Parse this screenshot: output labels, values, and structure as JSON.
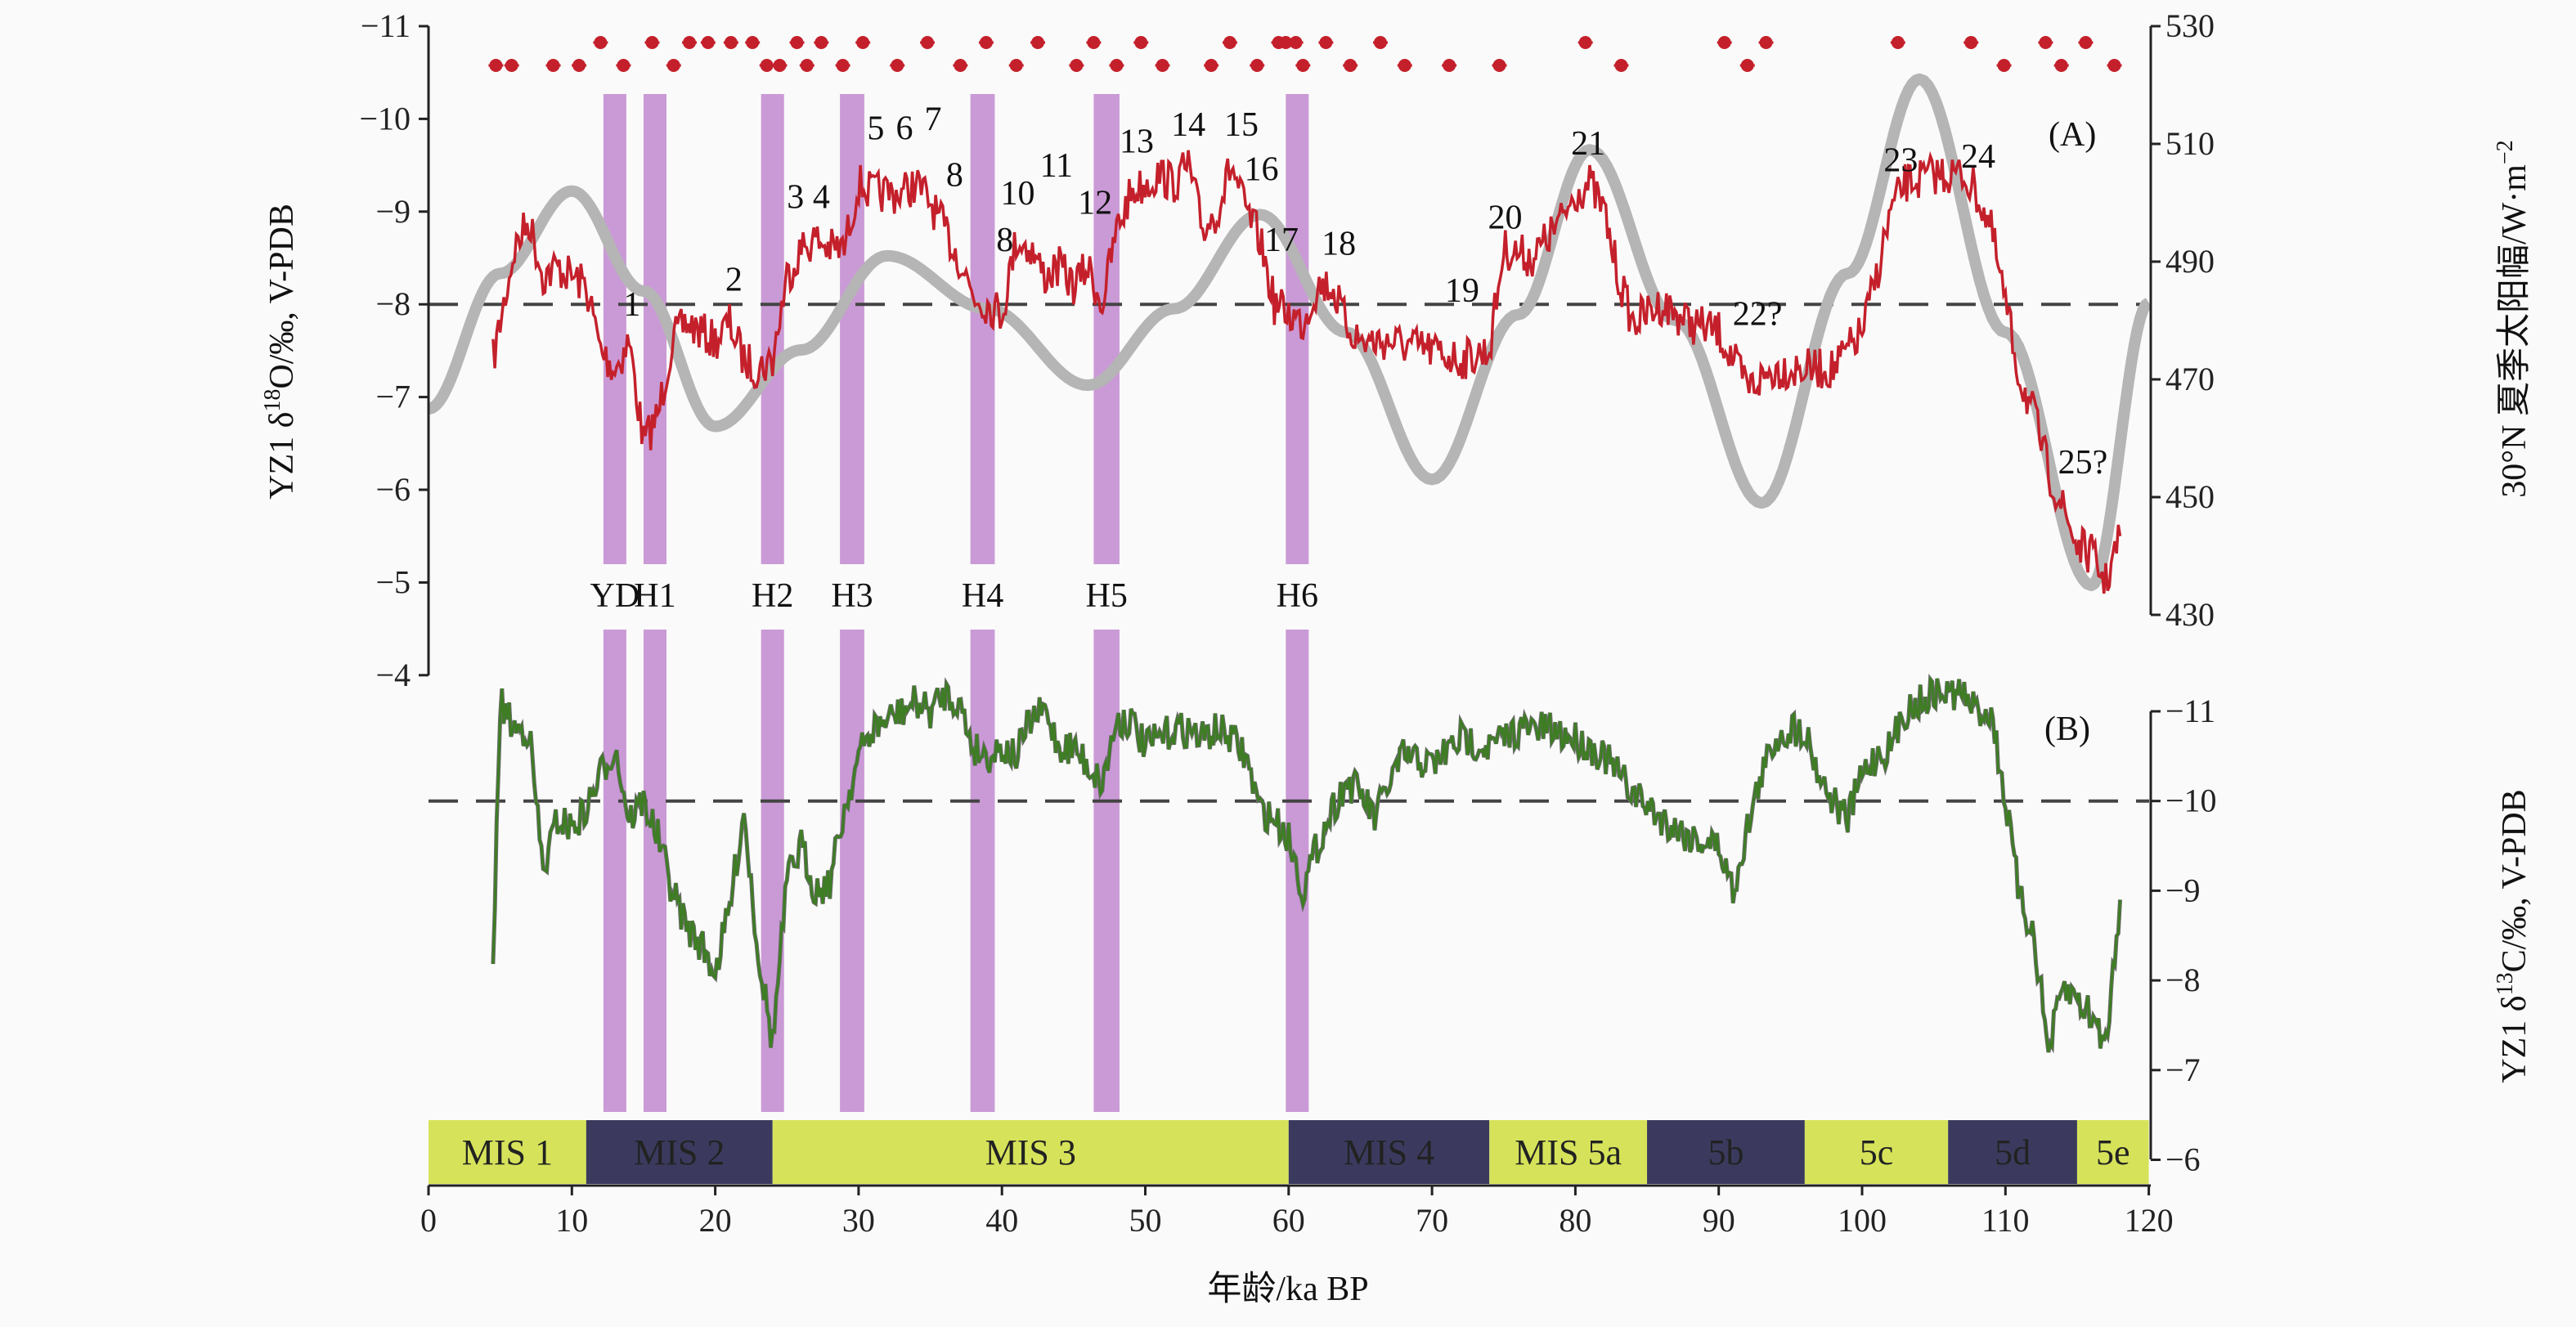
{
  "chart_data": {
    "type": "line",
    "panels": [
      "(A)",
      "(B)"
    ],
    "xlabel": "年龄/ka BP",
    "xlim": [
      0,
      120
    ],
    "xticks": [
      0,
      10,
      20,
      30,
      40,
      50,
      60,
      70,
      80,
      90,
      100,
      110,
      120
    ],
    "ylabel_left_A": {
      "pre": "YZ1 δ",
      "sup": "18",
      "post": "O/‰, V-PDB"
    },
    "ylim_left_A": [
      -11,
      -4
    ],
    "yticks_left_A": [
      "−11",
      "−10",
      "−9",
      "−8",
      "−7",
      "−6",
      "−5",
      "−4"
    ],
    "ylabel_right_A": {
      "pre": "30°N 夏季太阳幅/W·m",
      "sup": "−2"
    },
    "ylim_right_A": [
      430,
      530
    ],
    "yticks_right_A": [
      "530",
      "510",
      "490",
      "470",
      "450",
      "430"
    ],
    "ylabel_right_B": {
      "pre": "YZ1 δ",
      "sup": "13",
      "post": "C/‰, V-PDB"
    },
    "ylim_right_B": [
      -11,
      -6
    ],
    "yticks_right_B": [
      "−11",
      "−10",
      "−9",
      "−8",
      "−7",
      "−6"
    ],
    "reference_lines": {
      "A_d18O": -8,
      "B_d13C": -10
    },
    "series": [
      {
        "name": "YZ1 d18O",
        "color": "#c4202b",
        "axis": "left_A",
        "points": [
          [
            4.5,
            -7.4
          ],
          [
            5,
            -7.8
          ],
          [
            6,
            -8.6
          ],
          [
            7,
            -8.9
          ],
          [
            8,
            -8.3
          ],
          [
            9,
            -8.4
          ],
          [
            10,
            -8.3
          ],
          [
            11,
            -8.2
          ],
          [
            12,
            -7.5
          ],
          [
            13,
            -7.3
          ],
          [
            14,
            -7.6
          ],
          [
            15,
            -6.5
          ],
          [
            16,
            -6.8
          ],
          [
            17,
            -7.6
          ],
          [
            18,
            -7.8
          ],
          [
            19,
            -7.7
          ],
          [
            20,
            -7.6
          ],
          [
            21,
            -7.8
          ],
          [
            22,
            -7.4
          ],
          [
            23,
            -7.3
          ],
          [
            24,
            -7.4
          ],
          [
            25,
            -8.3
          ],
          [
            26,
            -8.6
          ],
          [
            27,
            -8.7
          ],
          [
            28,
            -8.6
          ],
          [
            29,
            -8.6
          ],
          [
            30,
            -9.3
          ],
          [
            31,
            -9.2
          ],
          [
            32,
            -9.2
          ],
          [
            33,
            -9.2
          ],
          [
            34,
            -9.3
          ],
          [
            35,
            -9.1
          ],
          [
            36,
            -8.8
          ],
          [
            37,
            -8.5
          ],
          [
            38,
            -8.1
          ],
          [
            39,
            -8.0
          ],
          [
            40,
            -7.9
          ],
          [
            41,
            -8.7
          ],
          [
            42,
            -8.6
          ],
          [
            43,
            -8.3
          ],
          [
            44,
            -8.4
          ],
          [
            45,
            -8.2
          ],
          [
            46,
            -8.4
          ],
          [
            47,
            -8.0
          ],
          [
            48,
            -8.8
          ],
          [
            49,
            -9.2
          ],
          [
            50,
            -9.3
          ],
          [
            51,
            -9.4
          ],
          [
            52,
            -9.3
          ],
          [
            53,
            -9.5
          ],
          [
            54,
            -8.8
          ],
          [
            55,
            -9.0
          ],
          [
            56,
            -9.5
          ],
          [
            57,
            -9.0
          ],
          [
            58,
            -8.7
          ],
          [
            59,
            -8.0
          ],
          [
            60,
            -7.9
          ],
          [
            61,
            -7.8
          ],
          [
            62,
            -8.2
          ],
          [
            63,
            -8.2
          ],
          [
            64,
            -7.8
          ],
          [
            65,
            -7.6
          ],
          [
            67,
            -7.6
          ],
          [
            70,
            -7.5
          ],
          [
            72,
            -7.4
          ],
          [
            74,
            -7.5
          ],
          [
            75,
            -8.6
          ],
          [
            77,
            -8.5
          ],
          [
            79,
            -8.9
          ],
          [
            80,
            -9.2
          ],
          [
            81,
            -9.3
          ],
          [
            82,
            -9.0
          ],
          [
            83,
            -8.3
          ],
          [
            84,
            -7.8
          ],
          [
            86,
            -8.0
          ],
          [
            88,
            -7.8
          ],
          [
            90,
            -7.7
          ],
          [
            92,
            -7.1
          ],
          [
            94,
            -7.3
          ],
          [
            96,
            -7.3
          ],
          [
            98,
            -7.3
          ],
          [
            100,
            -7.7
          ],
          [
            101,
            -8.3
          ],
          [
            102,
            -9.0
          ],
          [
            103,
            -9.3
          ],
          [
            105,
            -9.4
          ],
          [
            107,
            -9.4
          ],
          [
            108,
            -9.2
          ],
          [
            109,
            -8.8
          ],
          [
            110,
            -8.0
          ],
          [
            111,
            -7.2
          ],
          [
            112,
            -6.8
          ],
          [
            113,
            -6.2
          ],
          [
            114,
            -5.8
          ],
          [
            115,
            -5.4
          ],
          [
            116,
            -5.3
          ],
          [
            117,
            -5.0
          ],
          [
            118,
            -5.5
          ]
        ]
      },
      {
        "name": "30N summer insolation",
        "color": "#b5b5b5",
        "axis": "right_A",
        "points": [
          [
            0,
            465
          ],
          [
            5,
            488
          ],
          [
            10,
            502
          ],
          [
            15,
            485
          ],
          [
            20,
            462
          ],
          [
            26,
            475
          ],
          [
            32,
            491
          ],
          [
            39,
            482
          ],
          [
            46,
            469
          ],
          [
            52,
            482
          ],
          [
            58,
            498
          ],
          [
            64,
            478
          ],
          [
            70,
            453
          ],
          [
            76,
            481
          ],
          [
            81,
            509
          ],
          [
            87,
            480
          ],
          [
            93,
            449
          ],
          [
            99,
            488
          ],
          [
            104,
            521
          ],
          [
            110,
            478
          ],
          [
            116,
            435
          ],
          [
            120,
            483
          ]
        ]
      },
      {
        "name": "YZ1 d13C",
        "color": "#3e7d24",
        "axis": "right_B",
        "points": [
          [
            4.5,
            -8.1
          ],
          [
            5,
            -11.1
          ],
          [
            6,
            -10.8
          ],
          [
            7,
            -10.8
          ],
          [
            8,
            -9.2
          ],
          [
            9,
            -9.8
          ],
          [
            10,
            -9.7
          ],
          [
            11,
            -9.9
          ],
          [
            12,
            -10.3
          ],
          [
            13,
            -10.6
          ],
          [
            14,
            -9.8
          ],
          [
            15,
            -10.0
          ],
          [
            16,
            -9.6
          ],
          [
            17,
            -9.0
          ],
          [
            18,
            -8.6
          ],
          [
            19,
            -8.4
          ],
          [
            20,
            -8.1
          ],
          [
            21,
            -8.8
          ],
          [
            22,
            -9.9
          ],
          [
            23,
            -8.3
          ],
          [
            24,
            -7.3
          ],
          [
            25,
            -9.1
          ],
          [
            26,
            -9.5
          ],
          [
            27,
            -9.0
          ],
          [
            28,
            -9.1
          ],
          [
            29,
            -9.9
          ],
          [
            30,
            -10.5
          ],
          [
            31,
            -10.8
          ],
          [
            32,
            -10.9
          ],
          [
            33,
            -11.0
          ],
          [
            34,
            -11.1
          ],
          [
            35,
            -11.0
          ],
          [
            36,
            -11.2
          ],
          [
            37,
            -11.1
          ],
          [
            38,
            -10.6
          ],
          [
            39,
            -10.5
          ],
          [
            40,
            -10.6
          ],
          [
            41,
            -10.5
          ],
          [
            42,
            -10.9
          ],
          [
            43,
            -11.0
          ],
          [
            44,
            -10.6
          ],
          [
            45,
            -10.6
          ],
          [
            46,
            -10.4
          ],
          [
            47,
            -10.2
          ],
          [
            48,
            -10.9
          ],
          [
            49,
            -10.9
          ],
          [
            50,
            -10.6
          ],
          [
            51,
            -10.7
          ],
          [
            52,
            -10.8
          ],
          [
            53,
            -10.8
          ],
          [
            54,
            -10.7
          ],
          [
            55,
            -10.8
          ],
          [
            56,
            -10.7
          ],
          [
            57,
            -10.5
          ],
          [
            58,
            -9.9
          ],
          [
            59,
            -9.8
          ],
          [
            60,
            -9.6
          ],
          [
            61,
            -9.0
          ],
          [
            62,
            -9.5
          ],
          [
            63,
            -9.9
          ],
          [
            64,
            -10.2
          ],
          [
            65,
            -10.1
          ],
          [
            66,
            -9.8
          ],
          [
            67,
            -10.2
          ],
          [
            68,
            -10.5
          ],
          [
            70,
            -10.4
          ],
          [
            72,
            -10.7
          ],
          [
            74,
            -10.6
          ],
          [
            76,
            -10.8
          ],
          [
            78,
            -10.8
          ],
          [
            80,
            -10.7
          ],
          [
            82,
            -10.5
          ],
          [
            84,
            -10.1
          ],
          [
            86,
            -9.8
          ],
          [
            88,
            -9.6
          ],
          [
            90,
            -9.5
          ],
          [
            91,
            -9.0
          ],
          [
            92,
            -9.7
          ],
          [
            93,
            -10.3
          ],
          [
            94,
            -10.7
          ],
          [
            95,
            -10.8
          ],
          [
            96,
            -10.8
          ],
          [
            97,
            -10.3
          ],
          [
            98,
            -10.0
          ],
          [
            99,
            -9.8
          ],
          [
            100,
            -10.3
          ],
          [
            101,
            -10.5
          ],
          [
            102,
            -10.6
          ],
          [
            103,
            -11.0
          ],
          [
            105,
            -11.2
          ],
          [
            107,
            -11.2
          ],
          [
            108,
            -11.0
          ],
          [
            109,
            -11.0
          ],
          [
            110,
            -10.0
          ],
          [
            111,
            -8.9
          ],
          [
            112,
            -8.5
          ],
          [
            113,
            -7.2
          ],
          [
            114,
            -7.9
          ],
          [
            115,
            -7.8
          ],
          [
            116,
            -7.6
          ],
          [
            117,
            -7.3
          ],
          [
            118,
            -8.9
          ]
        ]
      }
    ],
    "u_th_dates": {
      "color": "#c4202b",
      "upper_row": [
        12.0,
        15.6,
        18.2,
        19.5,
        21.1,
        22.6,
        25.7,
        27.4,
        30.3,
        34.8,
        38.9,
        42.5,
        46.4,
        49.7,
        55.9,
        59.3,
        59.8,
        60.5,
        62.6,
        66.4,
        80.7,
        90.4,
        93.3,
        102.5,
        107.6,
        112.8,
        115.6
      ],
      "lower_row": [
        4.7,
        5.8,
        8.7,
        10.5,
        13.6,
        17.1,
        23.6,
        24.5,
        26.4,
        28.9,
        32.7,
        37.1,
        41.0,
        45.2,
        48.0,
        51.2,
        54.6,
        57.8,
        61.0,
        64.3,
        68.1,
        71.2,
        74.7,
        83.2,
        92.0,
        109.9,
        113.9,
        117.6
      ]
    },
    "events": [
      {
        "label": "YD",
        "range": [
          12.2,
          13.8
        ]
      },
      {
        "label": "H1",
        "range": [
          15.0,
          16.6
        ]
      },
      {
        "label": "H2",
        "range": [
          23.2,
          24.8
        ]
      },
      {
        "label": "H3",
        "range": [
          28.7,
          30.4
        ]
      },
      {
        "label": "H4",
        "range": [
          37.8,
          39.5
        ]
      },
      {
        "label": "H5",
        "range": [
          46.4,
          48.2
        ]
      },
      {
        "label": "H6",
        "range": [
          59.8,
          61.4
        ]
      }
    ],
    "event_color": "#c48fd2",
    "annotations": [
      {
        "text": "1",
        "x": 14.2,
        "y": -8.0
      },
      {
        "text": "2",
        "x": 21.3,
        "y": -8.27
      },
      {
        "text": "3",
        "x": 25.6,
        "y": -9.16
      },
      {
        "text": "4",
        "x": 27.4,
        "y": -9.16
      },
      {
        "text": "5",
        "x": 31.2,
        "y": -9.9
      },
      {
        "text": "6",
        "x": 33.2,
        "y": -9.9
      },
      {
        "text": "7",
        "x": 35.2,
        "y": -10.0
      },
      {
        "text": "8",
        "x": 36.7,
        "y": -9.4
      },
      {
        "text": "10",
        "x": 41.1,
        "y": -9.2
      },
      {
        "text": "11",
        "x": 43.8,
        "y": -9.5
      },
      {
        "text": "8",
        "x": 40.2,
        "y": -8.7
      },
      {
        "text": "12",
        "x": 46.5,
        "y": -9.1
      },
      {
        "text": "13",
        "x": 49.4,
        "y": -9.76
      },
      {
        "text": "14",
        "x": 53.0,
        "y": -9.94
      },
      {
        "text": "15",
        "x": 56.7,
        "y": -9.94
      },
      {
        "text": "16",
        "x": 58.1,
        "y": -9.46
      },
      {
        "text": "17",
        "x": 59.5,
        "y": -8.7
      },
      {
        "text": "18",
        "x": 63.5,
        "y": -8.66
      },
      {
        "text": "19",
        "x": 72.1,
        "y": -8.15
      },
      {
        "text": "20",
        "x": 75.1,
        "y": -8.94
      },
      {
        "text": "21",
        "x": 80.9,
        "y": -9.74
      },
      {
        "text": "22?",
        "x": 92.7,
        "y": -7.9
      },
      {
        "text": "23",
        "x": 102.7,
        "y": -9.56
      },
      {
        "text": "24",
        "x": 108.1,
        "y": -9.6
      },
      {
        "text": "25?",
        "x": 115.4,
        "y": -6.3
      }
    ],
    "mis_stages": [
      {
        "label": "MIS 1",
        "range": [
          0,
          11
        ],
        "color": "#d6e35a"
      },
      {
        "label": "MIS 2",
        "range": [
          11,
          24
        ],
        "color": "#3b3a5e"
      },
      {
        "label": "MIS 3",
        "range": [
          24,
          60
        ],
        "color": "#d6e35a"
      },
      {
        "label": "MIS 4",
        "range": [
          60,
          74
        ],
        "color": "#3b3a5e"
      },
      {
        "label": "MIS 5a",
        "range": [
          74,
          85
        ],
        "color": "#d6e35a"
      },
      {
        "label": "5b",
        "range": [
          85,
          96
        ],
        "color": "#3b3a5e"
      },
      {
        "label": "5c",
        "range": [
          96,
          106
        ],
        "color": "#d6e35a"
      },
      {
        "label": "5d",
        "range": [
          106,
          115
        ],
        "color": "#3b3a5e"
      },
      {
        "label": "5e",
        "range": [
          115,
          120
        ],
        "color": "#d6e35a"
      }
    ]
  }
}
